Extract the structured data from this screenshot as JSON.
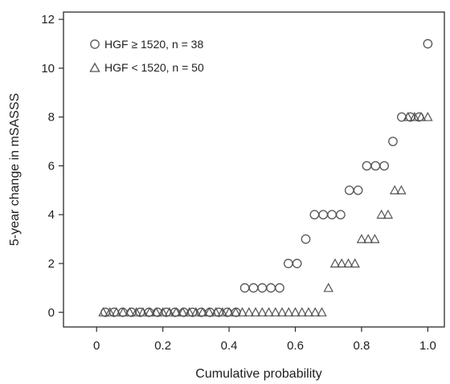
{
  "chart_data": {
    "type": "scatter",
    "xlabel": "Cumulative probability",
    "ylabel": "5-year change in mSASSS",
    "xlim": [
      -0.1,
      1.05
    ],
    "ylim": [
      -0.6,
      12.3
    ],
    "x_ticks": [
      0,
      0.2,
      0.4,
      0.6,
      0.8,
      1.0
    ],
    "x_tick_labels": [
      "0",
      "0.2",
      "0.4",
      "0.6",
      "0.8",
      "1.0"
    ],
    "y_ticks": [
      0,
      2,
      4,
      6,
      8,
      10,
      12
    ],
    "y_tick_labels": [
      "0",
      "2",
      "4",
      "6",
      "8",
      "10",
      "12"
    ],
    "grid": false,
    "legend_position": "top-left",
    "series": [
      {
        "name": "HGF ≥ 1520, n = 38",
        "marker": "circle",
        "color": "#555555",
        "x": [
          0.0263,
          0.0526,
          0.0789,
          0.1053,
          0.1316,
          0.1579,
          0.1842,
          0.2105,
          0.2368,
          0.2632,
          0.2895,
          0.3158,
          0.3421,
          0.3684,
          0.3947,
          0.4211,
          0.4474,
          0.4737,
          0.5,
          0.5263,
          0.5526,
          0.5789,
          0.6053,
          0.6316,
          0.6579,
          0.6842,
          0.7105,
          0.7368,
          0.7632,
          0.7895,
          0.8158,
          0.8421,
          0.8684,
          0.8947,
          0.9211,
          0.9474,
          0.9737,
          1.0
        ],
        "y": [
          0,
          0,
          0,
          0,
          0,
          0,
          0,
          0,
          0,
          0,
          0,
          0,
          0,
          0,
          0,
          0,
          1,
          1,
          1,
          1,
          1,
          2,
          2,
          3,
          4,
          4,
          4,
          4,
          5,
          5,
          6,
          6,
          6,
          7,
          8,
          8,
          8,
          11
        ]
      },
      {
        "name": "HGF < 1520, n = 50",
        "marker": "triangle",
        "color": "#555555",
        "x": [
          0.02,
          0.04,
          0.06,
          0.08,
          0.1,
          0.12,
          0.14,
          0.16,
          0.18,
          0.2,
          0.22,
          0.24,
          0.26,
          0.28,
          0.3,
          0.32,
          0.34,
          0.36,
          0.38,
          0.4,
          0.42,
          0.44,
          0.46,
          0.48,
          0.5,
          0.52,
          0.54,
          0.56,
          0.58,
          0.6,
          0.62,
          0.64,
          0.66,
          0.68,
          0.7,
          0.72,
          0.74,
          0.76,
          0.78,
          0.8,
          0.82,
          0.84,
          0.86,
          0.88,
          0.9,
          0.92,
          0.94,
          0.96,
          0.98,
          1.0
        ],
        "y": [
          0,
          0,
          0,
          0,
          0,
          0,
          0,
          0,
          0,
          0,
          0,
          0,
          0,
          0,
          0,
          0,
          0,
          0,
          0,
          0,
          0,
          0,
          0,
          0,
          0,
          0,
          0,
          0,
          0,
          0,
          0,
          0,
          0,
          0,
          1,
          2,
          2,
          2,
          2,
          3,
          3,
          3,
          4,
          4,
          5,
          5,
          8,
          8,
          8,
          8
        ]
      }
    ]
  }
}
